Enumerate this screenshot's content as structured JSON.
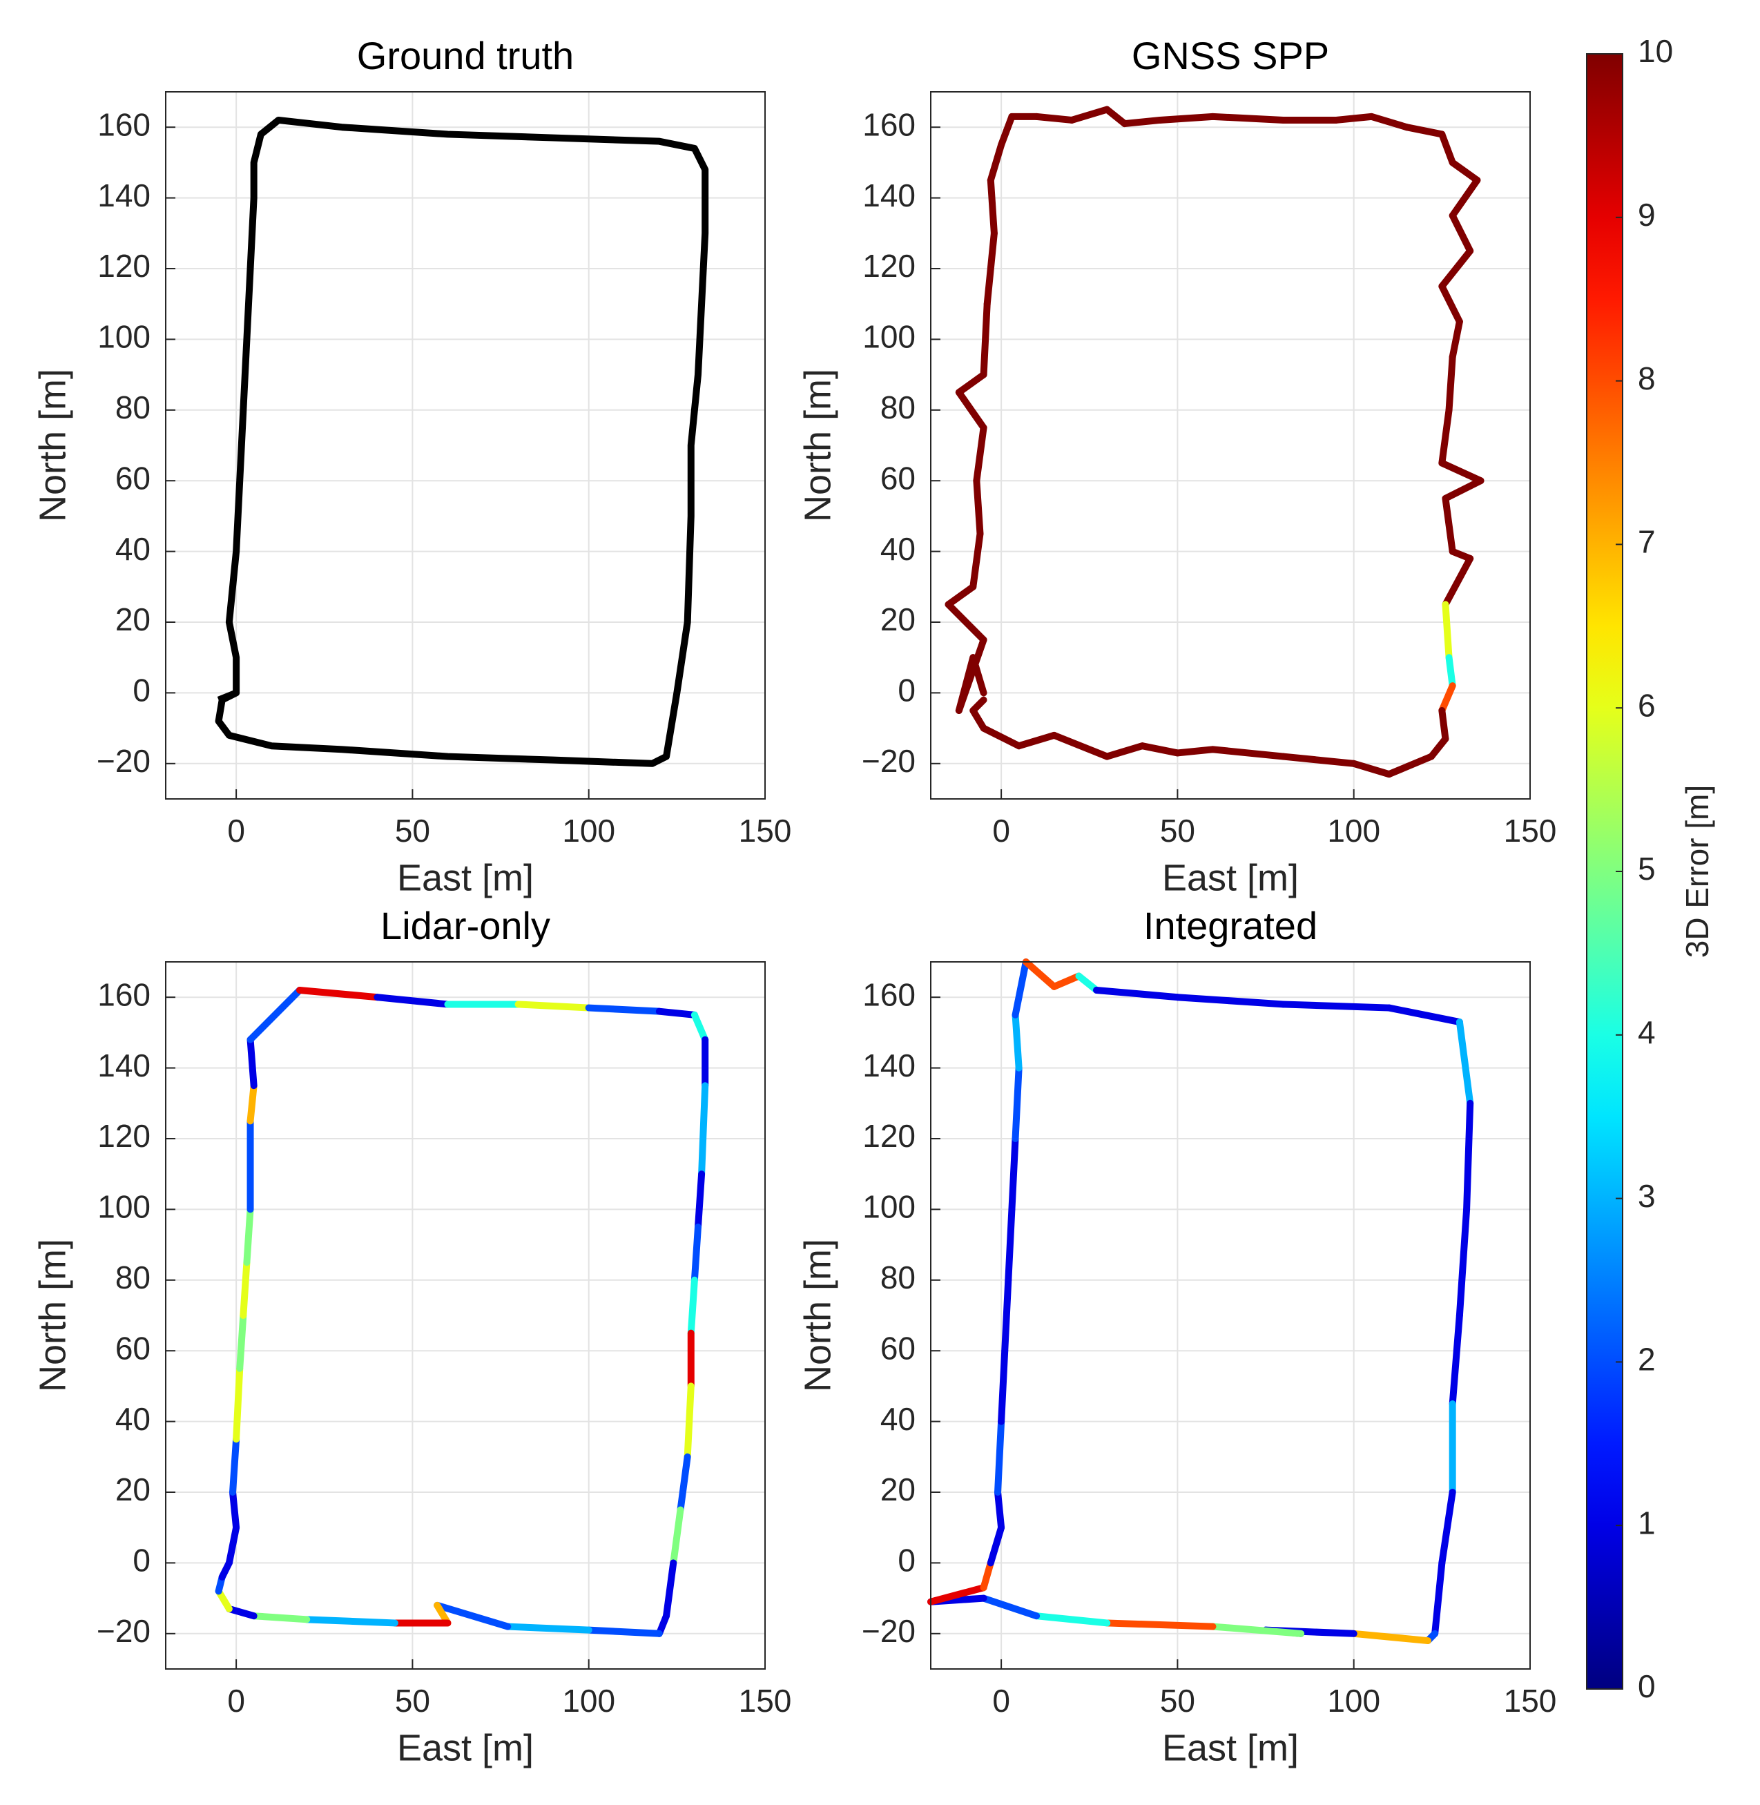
{
  "chart_data": [
    {
      "type": "line",
      "title": "Ground truth",
      "xlabel": "East [m]",
      "ylabel": "North [m]",
      "xlim": [
        -20,
        150
      ],
      "ylim": [
        -30,
        170
      ],
      "xticks": [
        0,
        50,
        100,
        150
      ],
      "yticks": [
        {
          "value": -20,
          "label": "−20"
        },
        0,
        20,
        40,
        60,
        80,
        100,
        120,
        140,
        160
      ],
      "grid": true,
      "series": [
        {
          "color": "#000000",
          "x": [
            -5,
            0,
            0,
            -2,
            0,
            1,
            2,
            3,
            4,
            5,
            5,
            7,
            12,
            30,
            60,
            90,
            120,
            130,
            133,
            133,
            132,
            131,
            129,
            129,
            128,
            125,
            122,
            118,
            90,
            60,
            30,
            10,
            -2,
            -5,
            -4,
            0
          ],
          "y": [
            -2,
            0,
            10,
            20,
            40,
            60,
            80,
            100,
            120,
            140,
            150,
            158,
            162,
            160,
            158,
            157,
            156,
            154,
            148,
            130,
            110,
            90,
            70,
            50,
            20,
            0,
            -18,
            -20,
            -19,
            -18,
            -16,
            -15,
            -12,
            -8,
            -2,
            0
          ]
        }
      ]
    },
    {
      "type": "line",
      "title": "GNSS SPP",
      "xlabel": "East [m]",
      "ylabel": "North [m]",
      "xlim": [
        -20,
        150
      ],
      "ylim": [
        -30,
        170
      ],
      "xticks": [
        0,
        50,
        100,
        150
      ],
      "yticks": [
        {
          "value": -20,
          "label": "−20"
        },
        0,
        20,
        40,
        60,
        80,
        100,
        120,
        140,
        160
      ],
      "grid": true,
      "series": [
        {
          "x": [
            -5,
            -8,
            -12,
            -5,
            -15,
            -8,
            -6,
            -7,
            -5,
            -12,
            -5,
            -4,
            -2,
            -3,
            0,
            3,
            10,
            20,
            30,
            35,
            45,
            60,
            80,
            95,
            105,
            115,
            125,
            128,
            135,
            128,
            133,
            125,
            130,
            128,
            127,
            125,
            136,
            126,
            128,
            133,
            126,
            127,
            128,
            125,
            126,
            122,
            110,
            100,
            80,
            60,
            50,
            40,
            30,
            15,
            5,
            -5,
            -8,
            -5
          ],
          "y": [
            0,
            10,
            -5,
            15,
            25,
            30,
            45,
            60,
            75,
            85,
            90,
            110,
            130,
            145,
            155,
            163,
            163,
            162,
            165,
            161,
            162,
            163,
            162,
            162,
            163,
            160,
            158,
            150,
            145,
            135,
            125,
            115,
            105,
            95,
            80,
            65,
            60,
            55,
            40,
            38,
            25,
            10,
            2,
            -5,
            -13,
            -18,
            -23,
            -20,
            -18,
            -16,
            -17,
            -15,
            -18,
            -12,
            -15,
            -10,
            -5,
            -2
          ],
          "error": [
            10,
            10,
            10,
            10,
            10,
            10,
            10,
            10,
            10,
            10,
            10,
            10,
            10,
            10,
            10,
            10,
            10,
            10,
            10,
            10,
            10,
            10,
            10,
            10,
            10,
            10,
            10,
            10,
            10,
            10,
            10,
            10,
            10,
            10,
            10,
            10,
            10,
            10,
            10,
            10,
            6,
            4,
            8,
            10,
            10,
            10,
            10,
            10,
            10,
            10,
            10,
            10,
            10,
            10,
            10,
            10,
            10,
            10
          ]
        }
      ]
    },
    {
      "type": "line",
      "title": "Lidar-only",
      "xlabel": "East [m]",
      "ylabel": "North [m]",
      "xlim": [
        -20,
        150
      ],
      "ylim": [
        -30,
        170
      ],
      "xticks": [
        0,
        50,
        100,
        150
      ],
      "yticks": [
        {
          "value": -20,
          "label": "−20"
        },
        0,
        20,
        40,
        60,
        80,
        100,
        120,
        140,
        160
      ],
      "grid": true,
      "series": [
        {
          "x": [
            -2,
            0,
            -1,
            0,
            1,
            2,
            3,
            4,
            4,
            5,
            4,
            18,
            40,
            60,
            80,
            100,
            120,
            130,
            133,
            133,
            132,
            131,
            130,
            129,
            129,
            128,
            126,
            124,
            122,
            120,
            100,
            77,
            57,
            60,
            45,
            20,
            5,
            -2,
            -5,
            -4,
            -2
          ],
          "y": [
            0,
            10,
            20,
            35,
            55,
            70,
            85,
            100,
            125,
            135,
            148,
            162,
            160,
            158,
            158,
            157,
            156,
            155,
            148,
            135,
            110,
            95,
            80,
            65,
            50,
            30,
            15,
            0,
            -15,
            -20,
            -19,
            -18,
            -12,
            -17,
            -17,
            -16,
            -15,
            -13,
            -8,
            -4,
            0
          ],
          "error": [
            1,
            1,
            2,
            6,
            5,
            6,
            5,
            2,
            7,
            1,
            2,
            9,
            1,
            4,
            6,
            2,
            1,
            4,
            1,
            3,
            1,
            2,
            4,
            9,
            6,
            2,
            5,
            1,
            1,
            2,
            3,
            2,
            7,
            9,
            3,
            5,
            1,
            6,
            2,
            1,
            2
          ]
        }
      ]
    },
    {
      "type": "line",
      "title": "Integrated",
      "xlabel": "East [m]",
      "ylabel": "North [m]",
      "xlim": [
        -20,
        150
      ],
      "ylim": [
        -30,
        170
      ],
      "xticks": [
        0,
        50,
        100,
        150
      ],
      "yticks": [
        {
          "value": -20,
          "label": "−20"
        },
        0,
        20,
        40,
        60,
        80,
        100,
        120,
        140,
        160
      ],
      "grid": true,
      "series": [
        {
          "x": [
            0,
            -1,
            0,
            1,
            2,
            3,
            4,
            5,
            4,
            7,
            15,
            22,
            27,
            50,
            80,
            110,
            130,
            133,
            132,
            130,
            128,
            128,
            125,
            123,
            121,
            100,
            75,
            85,
            60,
            30,
            10,
            -5,
            -20,
            -5,
            -3,
            0
          ],
          "y": [
            10,
            20,
            40,
            60,
            80,
            100,
            120,
            140,
            155,
            170,
            163,
            166,
            162,
            160,
            158,
            157,
            153,
            130,
            100,
            70,
            45,
            20,
            0,
            -20,
            -22,
            -20,
            -19,
            -20,
            -18,
            -17,
            -15,
            -10,
            -11,
            -7,
            0,
            10
          ],
          "error": [
            1,
            2,
            1,
            1,
            1,
            1,
            2,
            3,
            2,
            8,
            8,
            4,
            1,
            1,
            1,
            1,
            3,
            1,
            1,
            1,
            3,
            1,
            1,
            2,
            7,
            1,
            1,
            5,
            8,
            4,
            2,
            1,
            9,
            8,
            1,
            1
          ]
        }
      ]
    }
  ],
  "colorbar": {
    "label": "3D Error [m]",
    "lim": [
      0,
      10
    ],
    "ticks": [
      0,
      1,
      2,
      3,
      4,
      5,
      6,
      7,
      8,
      9,
      10
    ],
    "colormap": "jet"
  }
}
